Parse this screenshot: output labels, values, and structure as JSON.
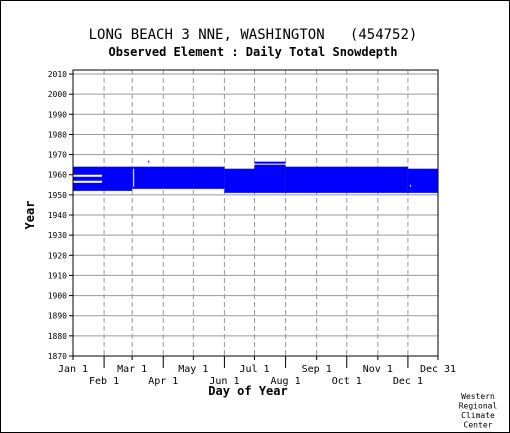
{
  "chart_data": {
    "type": "bar",
    "title": "LONG BEACH 3 NNE, WASHINGTON   (454752)",
    "subtitle": "Observed Element : Daily Total Snowdepth",
    "xlabel": "Day of Year",
    "ylabel": "Year",
    "xlim": [
      1,
      365
    ],
    "ylim": [
      1870,
      2012
    ],
    "grid": true,
    "month_ticks": [
      {
        "label": "Jan 1",
        "day": 1,
        "row": "upper"
      },
      {
        "label": "Feb 1",
        "day": 32,
        "row": "lower"
      },
      {
        "label": "Mar 1",
        "day": 60,
        "row": "upper"
      },
      {
        "label": "Apr 1",
        "day": 91,
        "row": "lower"
      },
      {
        "label": "May 1",
        "day": 121,
        "row": "upper"
      },
      {
        "label": "Jun 1",
        "day": 152,
        "row": "lower"
      },
      {
        "label": "Jul 1",
        "day": 182,
        "row": "upper"
      },
      {
        "label": "Aug 1",
        "day": 213,
        "row": "lower"
      },
      {
        "label": "Sep 1",
        "day": 244,
        "row": "upper"
      },
      {
        "label": "Oct 1",
        "day": 274,
        "row": "lower"
      },
      {
        "label": "Nov 1",
        "day": 305,
        "row": "upper"
      },
      {
        "label": "Dec 1",
        "day": 335,
        "row": "lower"
      },
      {
        "label": "Dec 31",
        "day": 365,
        "row": "upper"
      }
    ],
    "year_ticks": [
      1870,
      1880,
      1890,
      1900,
      1910,
      1920,
      1930,
      1940,
      1950,
      1960,
      1970,
      1980,
      1990,
      2000,
      2010
    ],
    "series": [
      {
        "color": "#0000ff",
        "records": [
          {
            "day_start": 1,
            "day_end": 60,
            "year_start": 1952,
            "year_end": 1964
          },
          {
            "day_start": 60,
            "day_end": 152,
            "year_start": 1953,
            "year_end": 1964
          },
          {
            "day_start": 152,
            "day_end": 182,
            "year_start": 1951,
            "year_end": 1963
          },
          {
            "day_start": 182,
            "day_end": 213,
            "year_start": 1951,
            "year_end": 1965
          },
          {
            "day_start": 213,
            "day_end": 335,
            "year_start": 1951,
            "year_end": 1964
          },
          {
            "day_start": 335,
            "day_end": 365,
            "year_start": 1951,
            "year_end": 1963
          },
          {
            "day_start": 182,
            "day_end": 213,
            "year_start": 1965.5,
            "year_end": 1966.5
          },
          {
            "day_start": 76,
            "day_end": 77,
            "year_start": 1966,
            "year_end": 1967
          }
        ],
        "gaps": [
          {
            "day_start": 1,
            "day_end": 30,
            "year_start": 1959,
            "year_end": 1960
          },
          {
            "day_start": 1,
            "day_end": 30,
            "year_start": 1956,
            "year_end": 1957
          },
          {
            "day_start": 61,
            "day_end": 62,
            "year_start": 1954,
            "year_end": 1963
          },
          {
            "day_start": 337,
            "day_end": 338,
            "year_start": 1954,
            "year_end": 1955
          }
        ]
      }
    ]
  },
  "credit": [
    "Western",
    "Regional",
    "Climate",
    "Center"
  ]
}
